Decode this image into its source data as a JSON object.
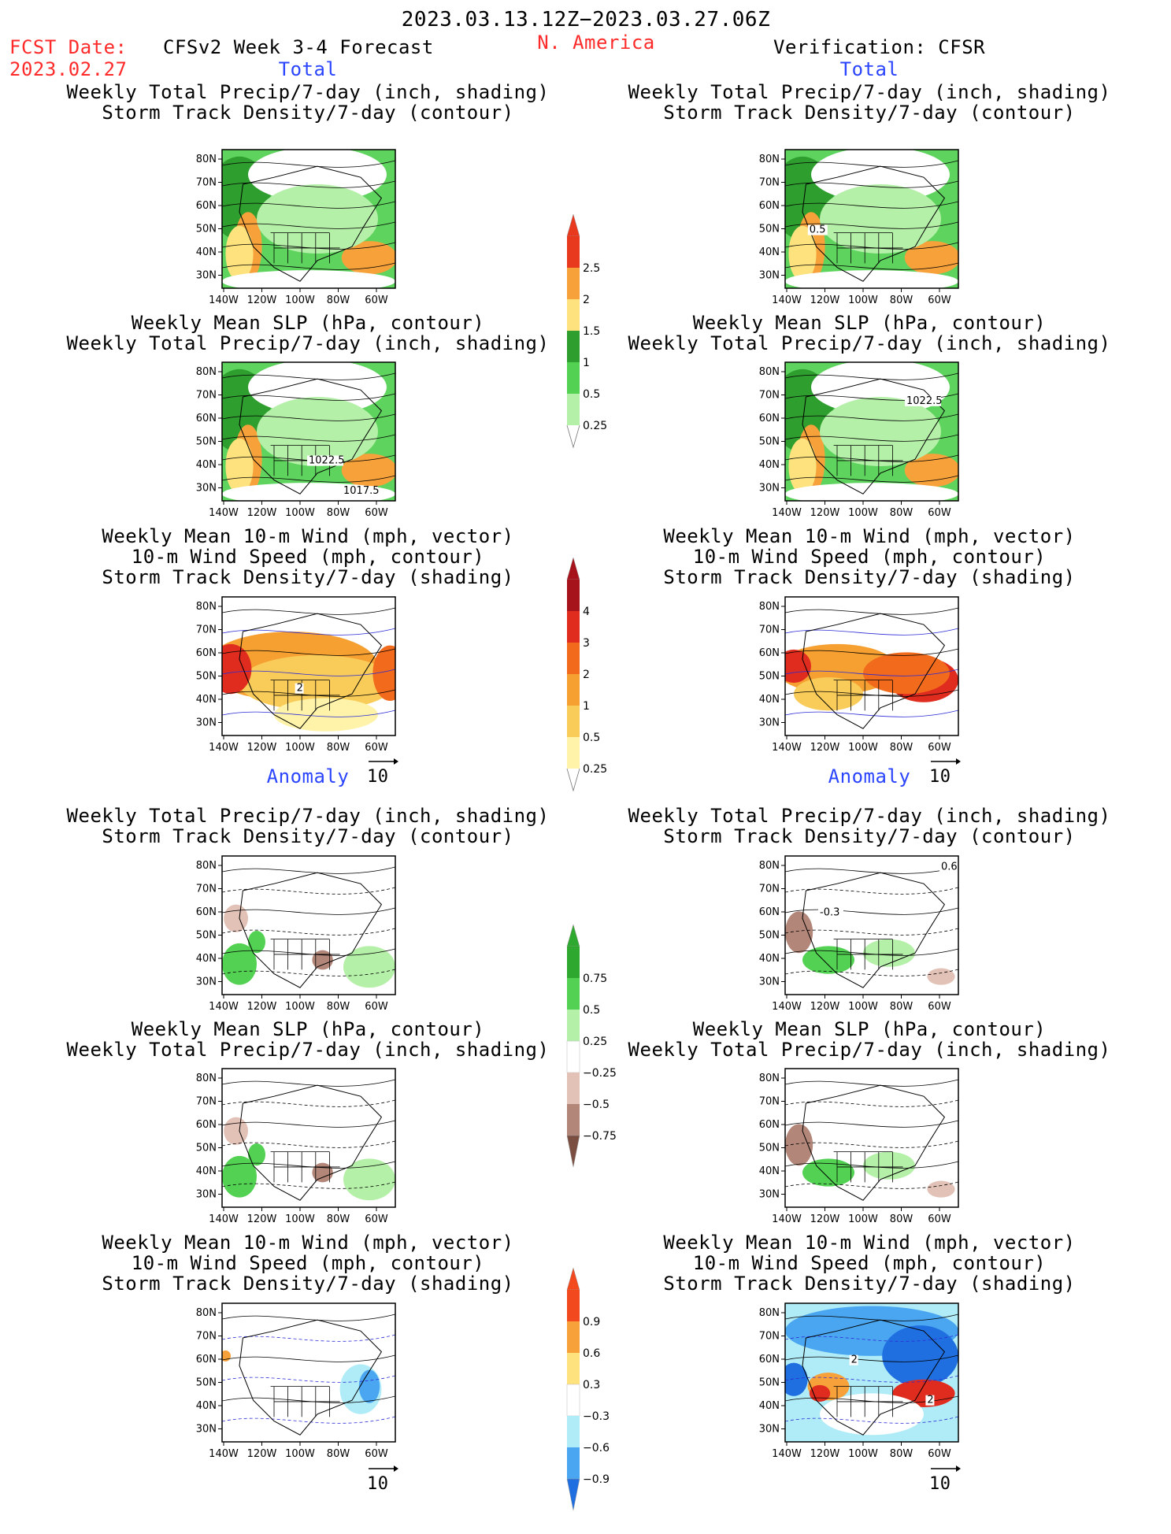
{
  "header": {
    "date_range": "2023.03.13.12Z−2023.03.27.06Z",
    "fcst_label": "FCST Date:",
    "fcst_date": "2023.02.27",
    "model_title": "CFSv2 Week 3-4 Forecast",
    "region": "N. America",
    "verification": "Verification: CFSR"
  },
  "sections": {
    "total": "Total",
    "anomaly": "Anomaly"
  },
  "panel_titles": {
    "precip": [
      "Weekly Total Precip/7-day (inch, shading)",
      "Storm Track Density/7-day (contour)"
    ],
    "slp": [
      "Weekly Mean SLP (hPa, contour)",
      "Weekly Total Precip/7-day (inch, shading)"
    ],
    "wind": [
      "Weekly Mean 10-m Wind (mph, vector)",
      "10-m Wind Speed (mph, contour)",
      "Storm Track Density/7-day (shading)"
    ]
  },
  "map_axes": {
    "lat_ticks": [
      "80N",
      "70N",
      "60N",
      "50N",
      "40N",
      "30N"
    ],
    "lon_ticks": [
      "140W",
      "120W",
      "100W",
      "80W",
      "60W"
    ]
  },
  "vector_reference": "10",
  "contour_labels": {
    "slp_fcst": [
      "1022.5",
      "1017.5"
    ],
    "slp_cfsr": [
      "1022.5"
    ],
    "storm_cfsr": [
      "0.5"
    ],
    "wind_fcst": [
      "2"
    ],
    "precip_anom_cfsr": [
      "0.6",
      "-0.3"
    ],
    "wind_anom_cfsr": [
      "2",
      "2"
    ]
  },
  "colorbars": {
    "precip_total": {
      "labels": [
        "2.5",
        "2",
        "1.5",
        "1",
        "0.5",
        "0.25"
      ],
      "colors": [
        "#e8391f",
        "#f7a13a",
        "#fde27e",
        "#2e9e2e",
        "#52d152",
        "#b5f0a8"
      ]
    },
    "storm_total": {
      "labels": [
        "4",
        "3",
        "2",
        "1",
        "0.5",
        "0.25"
      ],
      "colors": [
        "#a6131b",
        "#e02c1e",
        "#f26a1c",
        "#f5a030",
        "#f9cc59",
        "#fef3a8"
      ]
    },
    "precip_anom": {
      "labels": [
        "0.75",
        "0.5",
        "0.25",
        "−0.25",
        "−0.5",
        "−0.75"
      ],
      "colors": [
        "#2fa82f",
        "#52d152",
        "#b5f0a8",
        "#ffffff",
        "#e2c1b6",
        "#b28678",
        "#7a4f42"
      ]
    },
    "storm_anom": {
      "labels": [
        "0.9",
        "0.6",
        "0.3",
        "−0.3",
        "−0.6",
        "−0.9"
      ],
      "colors": [
        "#f2491e",
        "#f7a13a",
        "#fde27e",
        "#ffffff",
        "#b0ecf7",
        "#4aa6f0",
        "#1f6fe0"
      ]
    }
  }
}
